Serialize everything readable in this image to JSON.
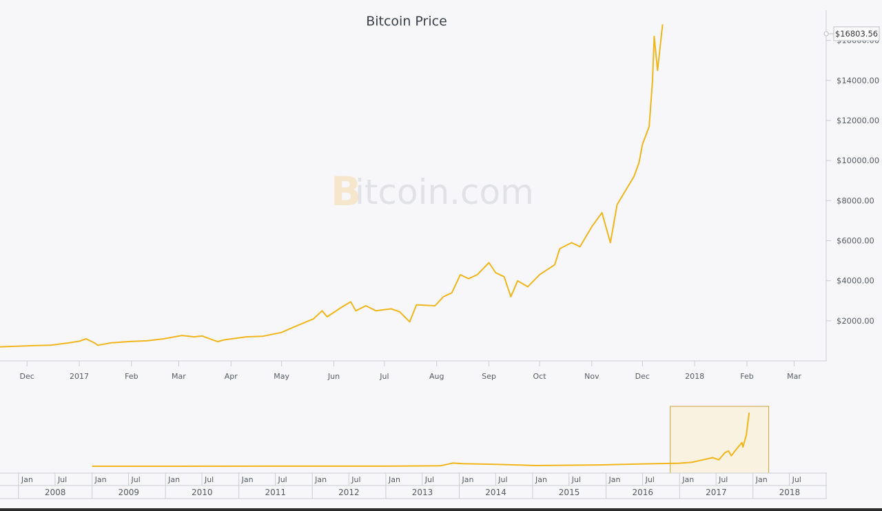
{
  "chart_data": {
    "type": "line",
    "title": "Bitcoin Price",
    "watermark": {
      "brand_initial": "B",
      "brand_rest": "itcoin.com"
    },
    "line_color": "#f1b51c",
    "current_price_label": "$16803.56",
    "y_axis": {
      "position": "right",
      "ylim": [
        0,
        17500
      ],
      "ticks": [
        {
          "value": 2000,
          "label": "$2000.00"
        },
        {
          "value": 4000,
          "label": "$4000.00"
        },
        {
          "value": 6000,
          "label": "$6000.00"
        },
        {
          "value": 8000,
          "label": "$8000.00"
        },
        {
          "value": 10000,
          "label": "$10000.00"
        },
        {
          "value": 12000,
          "label": "$12000.00"
        },
        {
          "value": 14000,
          "label": "$14000.00"
        },
        {
          "value": 16000,
          "label": "$16000.00"
        }
      ]
    },
    "x_axis": {
      "xlim": [
        "2016-11-15",
        "2018-03-20"
      ],
      "ticks": [
        {
          "date": "2016-12-01",
          "label": "Dec"
        },
        {
          "date": "2017-01-01",
          "label": "2017"
        },
        {
          "date": "2017-02-01",
          "label": "Feb"
        },
        {
          "date": "2017-03-01",
          "label": "Mar"
        },
        {
          "date": "2017-04-01",
          "label": "Apr"
        },
        {
          "date": "2017-05-01",
          "label": "May"
        },
        {
          "date": "2017-06-01",
          "label": "Jun"
        },
        {
          "date": "2017-07-01",
          "label": "Jul"
        },
        {
          "date": "2017-08-01",
          "label": "Aug"
        },
        {
          "date": "2017-09-01",
          "label": "Sep"
        },
        {
          "date": "2017-10-01",
          "label": "Oct"
        },
        {
          "date": "2017-11-01",
          "label": "Nov"
        },
        {
          "date": "2017-12-01",
          "label": "Dec"
        },
        {
          "date": "2018-01-01",
          "label": "2018"
        },
        {
          "date": "2018-02-01",
          "label": "Feb"
        },
        {
          "date": "2018-03-01",
          "label": "Mar"
        }
      ]
    },
    "series": [
      {
        "points": [
          [
            "2016-11-15",
            700
          ],
          [
            "2016-11-25",
            730
          ],
          [
            "2016-12-05",
            760
          ],
          [
            "2016-12-15",
            780
          ],
          [
            "2016-12-25",
            890
          ],
          [
            "2017-01-01",
            980
          ],
          [
            "2017-01-05",
            1100
          ],
          [
            "2017-01-10",
            900
          ],
          [
            "2017-01-12",
            780
          ],
          [
            "2017-01-20",
            900
          ],
          [
            "2017-02-01",
            970
          ],
          [
            "2017-02-10",
            1000
          ],
          [
            "2017-02-20",
            1100
          ],
          [
            "2017-03-03",
            1270
          ],
          [
            "2017-03-10",
            1200
          ],
          [
            "2017-03-15",
            1240
          ],
          [
            "2017-03-24",
            960
          ],
          [
            "2017-03-28",
            1050
          ],
          [
            "2017-04-10",
            1200
          ],
          [
            "2017-04-20",
            1230
          ],
          [
            "2017-05-01",
            1420
          ],
          [
            "2017-05-10",
            1750
          ],
          [
            "2017-05-20",
            2100
          ],
          [
            "2017-05-25",
            2500
          ],
          [
            "2017-05-28",
            2200
          ],
          [
            "2017-06-06",
            2700
          ],
          [
            "2017-06-11",
            2950
          ],
          [
            "2017-06-14",
            2500
          ],
          [
            "2017-06-20",
            2750
          ],
          [
            "2017-06-26",
            2500
          ],
          [
            "2017-07-05",
            2600
          ],
          [
            "2017-07-10",
            2450
          ],
          [
            "2017-07-16",
            1950
          ],
          [
            "2017-07-20",
            2800
          ],
          [
            "2017-07-31",
            2750
          ],
          [
            "2017-08-05",
            3200
          ],
          [
            "2017-08-10",
            3400
          ],
          [
            "2017-08-15",
            4300
          ],
          [
            "2017-08-20",
            4100
          ],
          [
            "2017-08-25",
            4300
          ],
          [
            "2017-09-01",
            4900
          ],
          [
            "2017-09-05",
            4400
          ],
          [
            "2017-09-10",
            4200
          ],
          [
            "2017-09-14",
            3200
          ],
          [
            "2017-09-18",
            4000
          ],
          [
            "2017-09-24",
            3700
          ],
          [
            "2017-10-01",
            4300
          ],
          [
            "2017-10-10",
            4800
          ],
          [
            "2017-10-13",
            5600
          ],
          [
            "2017-10-20",
            5900
          ],
          [
            "2017-10-25",
            5700
          ],
          [
            "2017-11-01",
            6700
          ],
          [
            "2017-11-07",
            7400
          ],
          [
            "2017-11-12",
            5900
          ],
          [
            "2017-11-16",
            7800
          ],
          [
            "2017-11-26",
            9200
          ],
          [
            "2017-11-29",
            9900
          ],
          [
            "2017-12-01",
            10800
          ],
          [
            "2017-12-05",
            11700
          ],
          [
            "2017-12-07",
            14000
          ],
          [
            "2017-12-08",
            16200
          ],
          [
            "2017-12-10",
            14500
          ],
          [
            "2017-12-13",
            16803.56
          ]
        ]
      }
    ],
    "navigator": {
      "years": [
        "2008",
        "2009",
        "2010",
        "2011",
        "2012",
        "2013",
        "2014",
        "2015",
        "2016",
        "2017",
        "2018"
      ],
      "month_labels": {
        "jan": "Jan",
        "jul": "Jul"
      },
      "xlim": [
        "2007-10-01",
        "2018-12-31"
      ],
      "selection": [
        "2016-11-15",
        "2018-03-20"
      ],
      "ylim": [
        0,
        17500
      ],
      "points": [
        [
          "2009-01-01",
          0
        ],
        [
          "2011-06-01",
          15
        ],
        [
          "2012-12-31",
          13
        ],
        [
          "2013-10-01",
          150
        ],
        [
          "2013-12-01",
          1000
        ],
        [
          "2014-01-15",
          800
        ],
        [
          "2014-07-01",
          600
        ],
        [
          "2015-01-15",
          220
        ],
        [
          "2015-12-01",
          400
        ],
        [
          "2016-06-15",
          700
        ],
        [
          "2016-12-31",
          960
        ],
        [
          "2017-03-01",
          1200
        ],
        [
          "2017-05-25",
          2400
        ],
        [
          "2017-06-15",
          2700
        ],
        [
          "2017-07-15",
          2000
        ],
        [
          "2017-08-15",
          4300
        ],
        [
          "2017-09-01",
          4800
        ],
        [
          "2017-09-15",
          3300
        ],
        [
          "2017-10-15",
          5700
        ],
        [
          "2017-11-07",
          7400
        ],
        [
          "2017-11-12",
          6000
        ],
        [
          "2017-11-29",
          9900
        ],
        [
          "2017-12-07",
          14000
        ],
        [
          "2017-12-13",
          16803.56
        ]
      ]
    }
  }
}
